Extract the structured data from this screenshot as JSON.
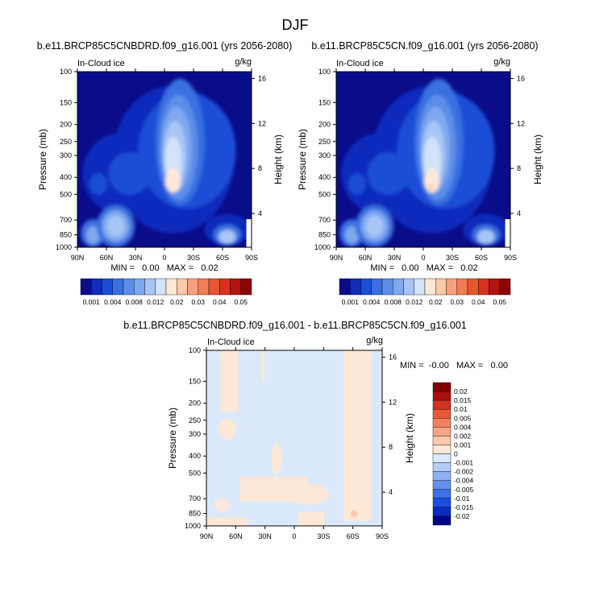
{
  "figure": {
    "title": "DJF"
  },
  "colors": {
    "frame": "#000000",
    "abs_scale": [
      "#0a0c8a",
      "#0f2cbd",
      "#1a4ed6",
      "#3a6fe0",
      "#5b8ee8",
      "#7fa8ef",
      "#a8c6f5",
      "#d2e3fa",
      "#fde8d8",
      "#fbc9a8",
      "#f8a07c",
      "#f37b55",
      "#e85631",
      "#d8321c",
      "#b3140e",
      "#8a0606"
    ],
    "diff_scale": [
      "#00008b",
      "#0a2ac2",
      "#1c4fe0",
      "#3c70ea",
      "#6590f0",
      "#8eb0f4",
      "#b6cdf8",
      "#dae9fb",
      "#fde8d8",
      "#fbcaae",
      "#f8a586",
      "#f2805e",
      "#e65a3a",
      "#d23322",
      "#a8110c",
      "#800000"
    ]
  },
  "chart_data": [
    {
      "type": "heatmap",
      "title": "b.e11.BRCP85C5CNBDRD.f09_g16.001 (yrs 2056-2080)",
      "variable": "In-Cloud ice",
      "units": "g/kg",
      "ylabel": "Pressure (mb)",
      "ylabel_right": "Height (km)",
      "x_ticks": [
        "90N",
        "60N",
        "30N",
        "0",
        "30S",
        "60S",
        "90S"
      ],
      "y_ticks": [
        "100",
        "150",
        "200",
        "250",
        "300",
        "400",
        "500",
        "700",
        "850",
        "1000"
      ],
      "y_right_ticks": [
        "16",
        "12",
        "8",
        "4"
      ],
      "stats": "MIN =   0.00   MAX =   0.02",
      "colorbar_labels": [
        "0.001",
        "0.004",
        "0.008",
        "0.012",
        "0.02",
        "0.03",
        "0.04",
        "0.05"
      ],
      "features": [
        {
          "lat": 2,
          "p": 480,
          "level": 7
        },
        {
          "lat": 5,
          "p": 330,
          "level": 5
        },
        {
          "lat": -63,
          "p": 900,
          "level": 5
        },
        {
          "lat": 60,
          "p": 850,
          "level": 5
        }
      ]
    },
    {
      "type": "heatmap",
      "title": "b.e11.BRCP85C5CN.f09_g16.001 (yrs 2056-2080)",
      "variable": "In-Cloud ice",
      "units": "g/kg",
      "ylabel": "Pressure (mb)",
      "ylabel_right": "Height (km)",
      "x_ticks": [
        "90N",
        "60N",
        "30N",
        "0",
        "30S",
        "60S",
        "90S"
      ],
      "y_ticks": [
        "100",
        "150",
        "200",
        "250",
        "300",
        "400",
        "500",
        "700",
        "850",
        "1000"
      ],
      "y_right_ticks": [
        "16",
        "12",
        "8",
        "4"
      ],
      "stats": "MIN =   0.00   MAX =   0.02",
      "colorbar_labels": [
        "0.001",
        "0.004",
        "0.008",
        "0.012",
        "0.02",
        "0.03",
        "0.04",
        "0.05"
      ],
      "features": [
        {
          "lat": 2,
          "p": 480,
          "level": 8
        },
        {
          "lat": 5,
          "p": 330,
          "level": 5
        },
        {
          "lat": -63,
          "p": 900,
          "level": 5
        },
        {
          "lat": 60,
          "p": 850,
          "level": 5
        }
      ]
    },
    {
      "type": "heatmap",
      "title": "b.e11.BRCP85C5CNBDRD.f09_g16.001 - b.e11.BRCP85C5CN.f09_g16.001",
      "variable": "In-Cloud ice",
      "units": "g/kg",
      "ylabel": "Pressure (mb)",
      "ylabel_right": "Height (km)",
      "x_ticks": [
        "90N",
        "60N",
        "30N",
        "0",
        "30S",
        "60S",
        "90S"
      ],
      "y_ticks": [
        "100",
        "150",
        "200",
        "250",
        "300",
        "400",
        "500",
        "700",
        "850",
        "1000"
      ],
      "y_right_ticks": [
        "16",
        "12",
        "8",
        "4"
      ],
      "stats": "MIN =  -0.00   MAX =   0.00",
      "colorbar_labels": [
        "0.02",
        "0.015",
        "0.01",
        "0.005",
        "0.004",
        "0.002",
        "0.001",
        "0",
        "-0.001",
        "-0.002",
        "-0.004",
        "-0.005",
        "-0.01",
        "-0.015",
        "-0.02"
      ]
    }
  ]
}
